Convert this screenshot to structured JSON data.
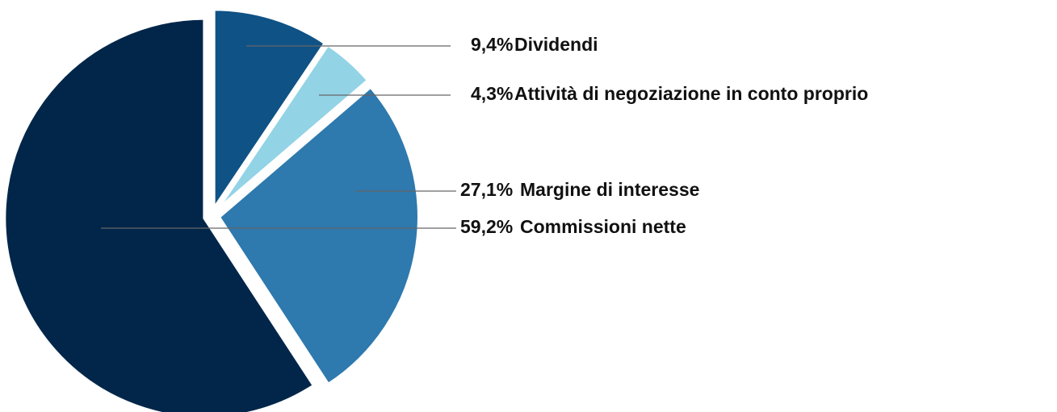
{
  "chart_data": {
    "type": "pie",
    "categories": [
      "Dividendi",
      "Attività di negoziazione in conto proprio",
      "Margine di interesse",
      "Commissioni nette"
    ],
    "values": [
      9.4,
      4.3,
      27.1,
      59.2
    ],
    "value_labels": [
      "9,4%",
      "4,3%",
      "27,1%",
      "59,2%"
    ],
    "colors": [
      "#0f5286",
      "#92d3e6",
      "#2e79ae",
      "#01264a"
    ]
  }
}
